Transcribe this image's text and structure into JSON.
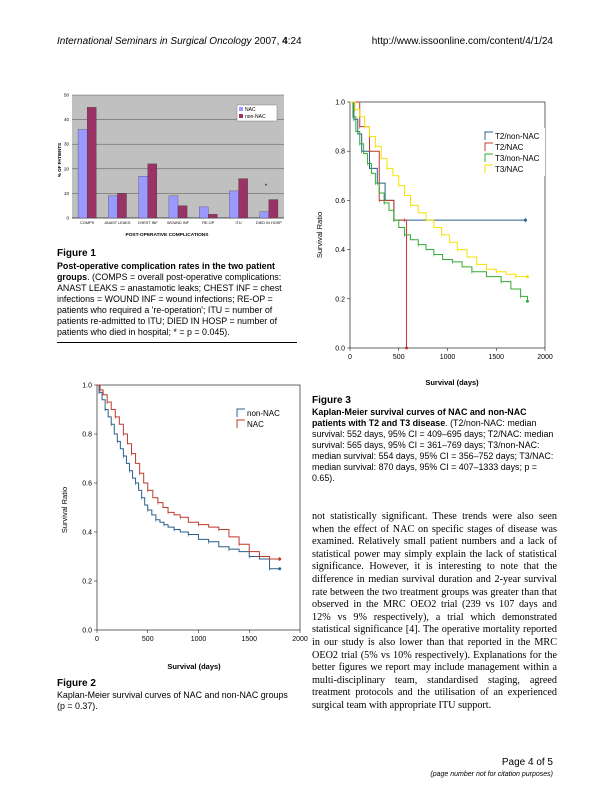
{
  "header": {
    "journal": "International Seminars in Surgical Oncology",
    "year_vol": " 2007, ",
    "volume": "4",
    "article": ":24",
    "url": "http://www.issoonline.com/content/4/1/24"
  },
  "figure1": {
    "label": "Figure 1",
    "title": "Post-operative complication rates in the two patient groups",
    "caption_rest": ". (COMPS = overall post-operative complications: ANAST LEAKS = anastamotic leaks; CHEST INF = chest infections = WOUND INF = wound infections; RE-OP = patients who required a 're-operation'; ITU = number of patients re-admitted to ITU; DIED IN HOSP = number of patients who died in hospital; * = p = 0.045).",
    "chart_data": {
      "type": "bar",
      "ylabel": "% OF PATIENTS",
      "xlabel": "POST-OPERATIVE COMPLICATIONS",
      "ylim": [
        0,
        50
      ],
      "yticks": [
        "0",
        "10",
        "20",
        "30",
        "40",
        "50"
      ],
      "categories": [
        "COMPS",
        "ANAST LEAKS",
        "CHEST INF",
        "WOUND INF",
        "RE-OP",
        "ITU",
        "DIED IN HOSP"
      ],
      "series": [
        {
          "name": "NAC",
          "color": "#9999ff",
          "values": [
            36,
            9,
            17,
            9,
            4.5,
            11,
            2.5
          ]
        },
        {
          "name": "non-NAC",
          "color": "#993366",
          "values": [
            45,
            10,
            22,
            5,
            1.5,
            16,
            7.5
          ]
        }
      ],
      "annotation": "*",
      "grid": true,
      "legend": "top-right",
      "plot_bg": "#c0c0c0"
    }
  },
  "figure2": {
    "label": "Figure 2",
    "caption": "Kaplan-Meier survival curves of NAC and non-NAC groups (p = 0.37).",
    "chart_data": {
      "type": "line",
      "xlabel": "Survival (days)",
      "ylabel": "Survival Ratio",
      "xlim": [
        0,
        2000
      ],
      "ylim": [
        0,
        1
      ],
      "xticks": [
        "0",
        "500",
        "1000",
        "1500",
        "2000"
      ],
      "yticks": [
        "0.0",
        "0.2",
        "0.4",
        "0.6",
        "0.8",
        "1.0"
      ],
      "legend": "top-right",
      "series": [
        {
          "name": "non-NAC",
          "color": "#2b5f8a",
          "x": [
            0,
            20,
            50,
            80,
            110,
            140,
            170,
            200,
            230,
            260,
            290,
            320,
            350,
            380,
            410,
            440,
            470,
            500,
            540,
            580,
            620,
            660,
            700,
            760,
            820,
            900,
            1000,
            1100,
            1200,
            1300,
            1400,
            1500,
            1600,
            1700,
            1800
          ],
          "y": [
            1.0,
            0.97,
            0.94,
            0.9,
            0.87,
            0.84,
            0.8,
            0.77,
            0.74,
            0.71,
            0.68,
            0.65,
            0.62,
            0.6,
            0.57,
            0.54,
            0.51,
            0.49,
            0.47,
            0.45,
            0.44,
            0.43,
            0.42,
            0.41,
            0.4,
            0.39,
            0.37,
            0.36,
            0.34,
            0.33,
            0.32,
            0.3,
            0.29,
            0.25,
            0.25
          ]
        },
        {
          "name": "NAC",
          "color": "#c0392b",
          "x": [
            0,
            30,
            60,
            100,
            140,
            180,
            220,
            260,
            300,
            340,
            380,
            420,
            460,
            500,
            550,
            600,
            650,
            700,
            760,
            820,
            900,
            1000,
            1100,
            1200,
            1300,
            1400,
            1500,
            1600,
            1700,
            1800
          ],
          "y": [
            1.0,
            0.98,
            0.96,
            0.93,
            0.9,
            0.87,
            0.84,
            0.8,
            0.76,
            0.72,
            0.68,
            0.64,
            0.6,
            0.57,
            0.54,
            0.52,
            0.5,
            0.48,
            0.47,
            0.46,
            0.44,
            0.43,
            0.42,
            0.41,
            0.38,
            0.35,
            0.32,
            0.3,
            0.29,
            0.29
          ]
        }
      ]
    }
  },
  "figure3": {
    "label": "Figure 3",
    "title": "Kaplan-Meier survival curves of NAC and non-NAC patients with T2 and T3 disease",
    "caption_rest": ". (T2/non-NAC: median survival: 552 days, 95% CI = 409–695 days; T2/NAC: median survival: 565 days, 95% CI = 361–769 days; T3/non-NAC: median survival: 554 days, 95% CI = 356–752 days; T3/NAC: median survival: 870 days, 95% CI = 407–1333 days; p = 0.65).",
    "chart_data": {
      "type": "line",
      "xlabel": "Survival (days)",
      "ylabel": "Survival Ratio",
      "xlim": [
        0,
        2000
      ],
      "ylim": [
        0,
        1
      ],
      "xticks": [
        "0",
        "500",
        "1000",
        "1500",
        "2000"
      ],
      "yticks": [
        "0.0",
        "0.2",
        "0.4",
        "0.6",
        "0.8",
        "1.0"
      ],
      "legend": "top-right",
      "series": [
        {
          "name": "T2/non-NAC",
          "color": "#2b5f8a",
          "x": [
            0,
            40,
            80,
            120,
            200,
            280,
            360,
            450,
            560,
            1800
          ],
          "y": [
            1.0,
            0.93,
            0.87,
            0.8,
            0.73,
            0.67,
            0.6,
            0.52,
            0.52,
            0.52
          ]
        },
        {
          "name": "T2/NAC",
          "color": "#c0392b",
          "x": [
            0,
            100,
            200,
            300,
            450,
            560,
            580
          ],
          "y": [
            1.0,
            0.9,
            0.8,
            0.6,
            0.52,
            0.52,
            0.0
          ]
        },
        {
          "name": "T3/non-NAC",
          "color": "#33aa33",
          "x": [
            0,
            30,
            60,
            100,
            140,
            180,
            220,
            260,
            300,
            350,
            400,
            450,
            500,
            560,
            620,
            700,
            780,
            860,
            950,
            1050,
            1150,
            1250,
            1400,
            1550,
            1650,
            1750,
            1820
          ],
          "y": [
            1.0,
            0.94,
            0.88,
            0.83,
            0.79,
            0.75,
            0.71,
            0.67,
            0.63,
            0.59,
            0.56,
            0.52,
            0.49,
            0.46,
            0.44,
            0.42,
            0.4,
            0.38,
            0.36,
            0.35,
            0.33,
            0.31,
            0.29,
            0.27,
            0.24,
            0.21,
            0.19
          ]
        },
        {
          "name": "T3/NAC",
          "color": "#f5e000",
          "x": [
            0,
            50,
            100,
            150,
            200,
            260,
            320,
            380,
            440,
            500,
            560,
            620,
            700,
            780,
            860,
            940,
            1020,
            1100,
            1200,
            1300,
            1400,
            1500,
            1600,
            1700,
            1820
          ],
          "y": [
            1.0,
            0.97,
            0.94,
            0.9,
            0.86,
            0.82,
            0.77,
            0.73,
            0.7,
            0.66,
            0.62,
            0.58,
            0.55,
            0.52,
            0.49,
            0.46,
            0.43,
            0.4,
            0.37,
            0.34,
            0.32,
            0.31,
            0.3,
            0.29,
            0.29
          ]
        }
      ]
    }
  },
  "body": {
    "paragraph": "not statistically significant. These trends were also seen when the effect of NAC on specific stages of disease was examined. Relatively small patient numbers and a lack of statistical power may simply explain the lack of statistical significance. However, it is interesting to note that the difference in median survival duration and 2-year survival rate between the two treatment groups was greater than that observed in the MRC OEO2 trial (239 vs 107 days and 12% vs 9% respectively), a trial which demonstrated statistical significance [4]. The operative mortality reported in our study is also lower than that reported in the MRC OEO2 trial (5% vs 10% respectively). Explanations for the better figures we report may include management within a multi-disciplinary team, standardised staging, agreed treatment protocols and the utilisation of an experienced surgical team with appropriate ITU support."
  },
  "footer": {
    "page": "Page 4 of 5",
    "note": "(page number not for citation purposes)"
  }
}
